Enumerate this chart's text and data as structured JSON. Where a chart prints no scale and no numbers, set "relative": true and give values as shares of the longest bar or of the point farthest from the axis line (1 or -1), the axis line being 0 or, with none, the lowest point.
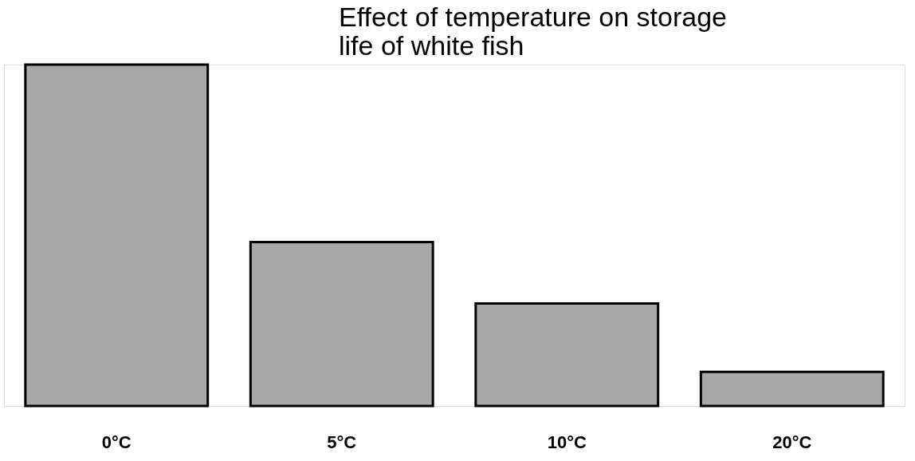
{
  "chart_data": {
    "type": "bar",
    "title": "Effect of temperature on storage life of white fish",
    "categories": [
      "0°C",
      "5°C",
      "10°C",
      "20°C"
    ],
    "values": [
      1,
      0.48,
      0.3,
      0.1
    ],
    "color": "#a8a8a8",
    "relative": true,
    "grid": false
  }
}
